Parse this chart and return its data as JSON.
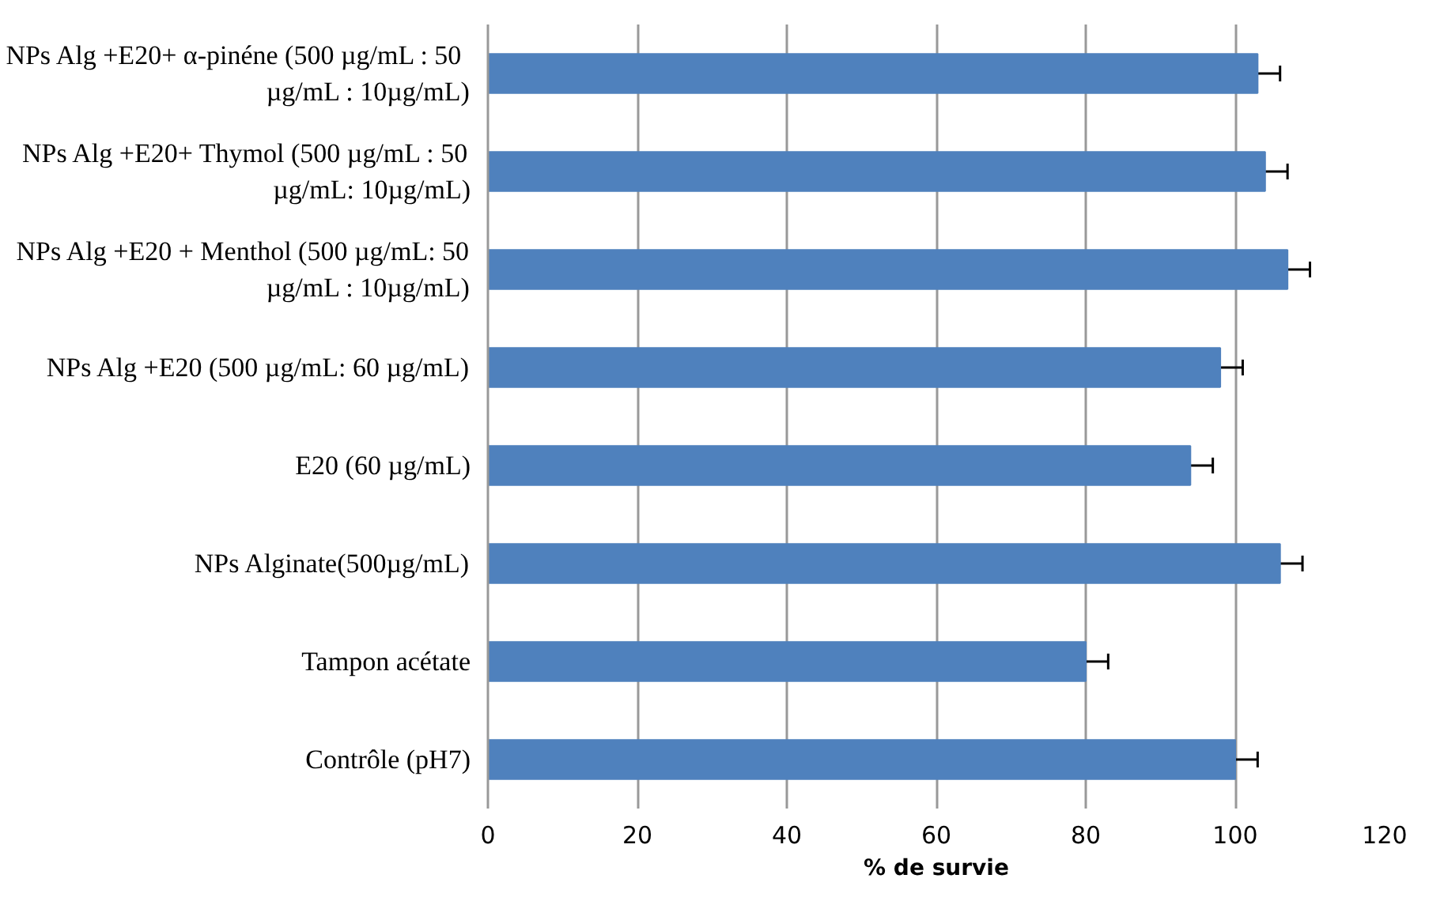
{
  "chart_data": {
    "type": "bar",
    "orientation": "horizontal",
    "xlabel": "% de survie",
    "categories": [
      "NPs Alg +E20+ α-pinéne  (500 µg/mL : 50 µg/mL : 10µg/mL)",
      "NPs Alg +E20+ Thymol (500 µg/mL : 50 µg/mL: 10µg/mL)",
      "NPs Alg +E20 + Menthol (500 µg/mL: 50 µg/mL : 10µg/mL)",
      "NPs Alg +E20 (500 µg/mL: 60 µg/mL)",
      "E20 (60 µg/mL)",
      "NPs Alginate(500µg/mL)",
      "Tampon acétate",
      "Contrôle (pH7)"
    ],
    "values": [
      103,
      104,
      107,
      98,
      94,
      106,
      80,
      100
    ],
    "errors": [
      3,
      3,
      3,
      3,
      3,
      3,
      3,
      3
    ],
    "color": "#4f81bd",
    "xlim": [
      0,
      120
    ],
    "xticks": [
      0,
      20,
      40,
      60,
      80,
      100,
      120
    ],
    "grid": "x"
  }
}
